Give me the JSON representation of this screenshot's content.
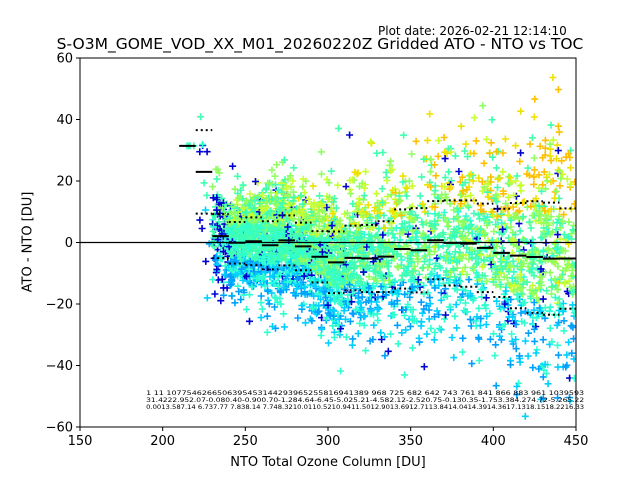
{
  "chart_data": {
    "type": "scatter",
    "plot_date": "Plot date: 2026-02-21 12:14:10",
    "title": "S-O3M_GOME_VOD_XX_M01_20260220Z Gridded ATO - NTO vs TOC",
    "xlabel": "NTO Total Ozone Column [DU]",
    "ylabel": "ATO - NTO [DU]",
    "xlim": [
      150,
      450
    ],
    "ylim": [
      -60,
      60
    ],
    "xticks": [
      "150",
      "200",
      "250",
      "300",
      "350",
      "400",
      "450"
    ],
    "yticks": [
      "60",
      "40",
      "20",
      "0",
      "−20",
      "−40",
      "−60"
    ],
    "xtick_values": [
      150,
      200,
      250,
      300,
      350,
      400,
      450
    ],
    "ytick_values": [
      60,
      40,
      20,
      0,
      -20,
      -40,
      -60
    ],
    "grid": false,
    "zero_line": 0,
    "marker": "+",
    "colormap": [
      "#0000d0",
      "#0050ff",
      "#00a0ff",
      "#00d0ff",
      "#30ffd0",
      "#40ffb0",
      "#90ff60",
      "#c8ff30",
      "#f0e000",
      "#ffc000"
    ],
    "bins": {
      "x_start": [
        210,
        220,
        230,
        240,
        250,
        260,
        270,
        280,
        290,
        300,
        310,
        320,
        330,
        340,
        350,
        360,
        370,
        380,
        390,
        400,
        410,
        420,
        430,
        440
      ],
      "count": [
        1,
        11,
        1077,
        5462,
        6650,
        6395,
        4531,
        4429,
        3965,
        2558,
        1694,
        1389,
        968,
        725,
        682,
        642,
        743,
        761,
        841,
        866,
        883,
        961,
        1039,
        593
      ],
      "mean": [
        31.42,
        22.95,
        2.07,
        -0.08,
        0.4,
        -0.9,
        0.7,
        -1.28,
        -4.64,
        -6.45,
        -5.02,
        -5.21,
        -4.58,
        -2.12,
        -2.52,
        0.75,
        -0.13,
        -0.35,
        -1.75,
        -3.38,
        -4.27,
        -4.72,
        -5.26,
        -5.22
      ],
      "std": [
        0.0,
        13.58,
        7.14,
        6.73,
        7.77,
        7.83,
        8.14,
        7.74,
        8.32,
        10.01,
        10.52,
        10.94,
        11.5,
        12.9,
        13.69,
        12.71,
        13.84,
        14.04,
        14.39,
        14.36,
        17.13,
        18.15,
        18.22,
        16.33
      ]
    },
    "annotation_rows": [
      "1    11 1077546266506395453144293965255816941389 968  725  682  642  743  761  841  866  883  961 1039593",
      "31.4222.952.07-0.080.40-0.900.70-1.284.64-6.45-5.025.21-4.582.12-2.520.75-0.130.35-1.753.384.274.72-5.265.22",
      "0.0013.587.14 6.737.77 7.838.14 7.748.3210.0110.5210.9411.5012.9013.6912.7113.8414.0414.3914.3617.1318.1518.2216.33"
    ]
  }
}
